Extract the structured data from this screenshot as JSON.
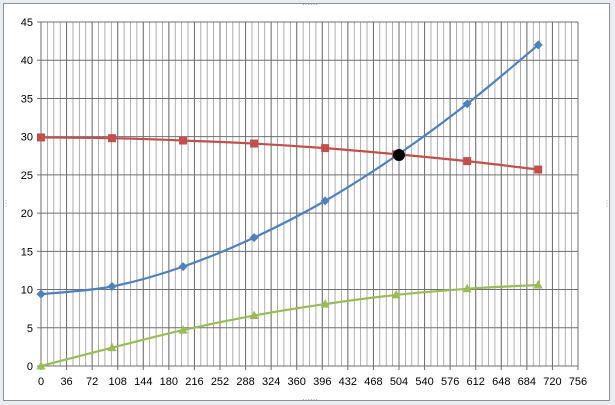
{
  "chart_data": {
    "type": "line",
    "title": "",
    "xlabel": "",
    "ylabel": "",
    "xlim": [
      0,
      756
    ],
    "ylim": [
      0,
      45
    ],
    "x_ticks": [
      0,
      36,
      72,
      108,
      144,
      180,
      216,
      252,
      288,
      324,
      360,
      396,
      432,
      468,
      504,
      540,
      576,
      612,
      648,
      684,
      720,
      756
    ],
    "y_ticks": [
      0,
      5,
      10,
      15,
      20,
      25,
      30,
      35,
      40,
      45
    ],
    "x_minor_step": 9,
    "grid": "major and minor vertical, major horizontal",
    "legend": "none",
    "series": [
      {
        "color": "#4f81bd",
        "marker": "diamond",
        "x": [
          0,
          100,
          200,
          300,
          400,
          500,
          600,
          700
        ],
        "y": [
          9.4,
          10.4,
          13.0,
          16.8,
          21.6,
          27.5,
          34.3,
          42.0
        ]
      },
      {
        "color": "#c0504d",
        "marker": "square",
        "x": [
          0,
          100,
          200,
          300,
          400,
          500,
          600,
          700
        ],
        "y": [
          29.9,
          29.8,
          29.5,
          29.1,
          28.5,
          27.7,
          26.8,
          25.7
        ]
      },
      {
        "color": "#9bbb59",
        "marker": "triangle",
        "x": [
          0,
          100,
          200,
          300,
          400,
          500,
          600,
          700
        ],
        "y": [
          0.0,
          2.4,
          4.7,
          6.6,
          8.1,
          9.3,
          10.1,
          10.6
        ]
      }
    ],
    "highlight_point": {
      "x": 504,
      "y": 27.6,
      "color": "#000000"
    }
  }
}
